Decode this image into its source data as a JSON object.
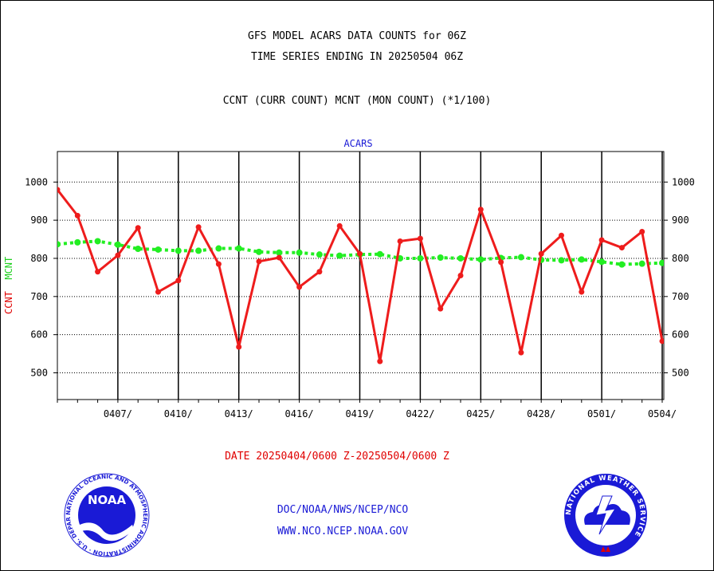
{
  "titles": {
    "line1": "GFS MODEL ACARS DATA COUNTS for 06Z",
    "line2": "TIME SERIES ENDING IN 20250504 06Z",
    "line3": "CCNT (CURR COUNT) MCNT (MON COUNT) (*1/100)"
  },
  "axis": {
    "ylabel_ccnt": "CCNT",
    "ylabel_mcnt": "MCNT",
    "date_range": "DATE 20250404/0600 Z-20250504/0600 Z"
  },
  "footer": {
    "link1": "DOC/NOAA/NWS/NCEP/NCO",
    "link2": "WWW.NCO.NCEP.NOAA.GOV",
    "noaa_logo_text": "NOAA",
    "noaa_ring_text": "NATIONAL OCEANIC AND ATMOSPHERIC ADMINISTRATION · U.S. DEPARTMENT OF COMMERCE",
    "nws_ring_text": "NATIONAL WEATHER SERVICE"
  },
  "colors": {
    "ccnt": "#ee1c1c",
    "mcnt": "#22ee22",
    "link": "#1a1ad6",
    "panel_title": "#1a1ad6"
  },
  "chart_data": {
    "type": "line",
    "title": "ACARS",
    "ylim": [
      430,
      1080
    ],
    "yticks": [
      500,
      600,
      700,
      800,
      900,
      1000
    ],
    "x": [
      "0404",
      "0405",
      "0406",
      "0407",
      "0408",
      "0409",
      "0410",
      "0411",
      "0412",
      "0413",
      "0414",
      "0415",
      "0416",
      "0417",
      "0418",
      "0419",
      "0420",
      "0421",
      "0422",
      "0423",
      "0424",
      "0425",
      "0426",
      "0427",
      "0428",
      "0429",
      "0430",
      "0501",
      "0502",
      "0503",
      "0504"
    ],
    "xticks": [
      "0407/",
      "0410/",
      "0413/",
      "0416/",
      "0419/",
      "0422/",
      "0425/",
      "0428/",
      "0501/",
      "0504/"
    ],
    "grid": true,
    "series": [
      {
        "name": "CCNT",
        "values": [
          980,
          912,
          765,
          808,
          880,
          712,
          742,
          882,
          785,
          568,
          792,
          802,
          725,
          765,
          885,
          812,
          530,
          845,
          852,
          668,
          755,
          928,
          790,
          553,
          812,
          860,
          712,
          848,
          828,
          870,
          583
        ]
      },
      {
        "name": "MCNT",
        "values": [
          837,
          842,
          845,
          836,
          825,
          823,
          820,
          820,
          826,
          826,
          817,
          815,
          815,
          810,
          807,
          810,
          811,
          800,
          800,
          802,
          800,
          797,
          801,
          803,
          796,
          795,
          797,
          791,
          784,
          786,
          788
        ]
      }
    ]
  }
}
